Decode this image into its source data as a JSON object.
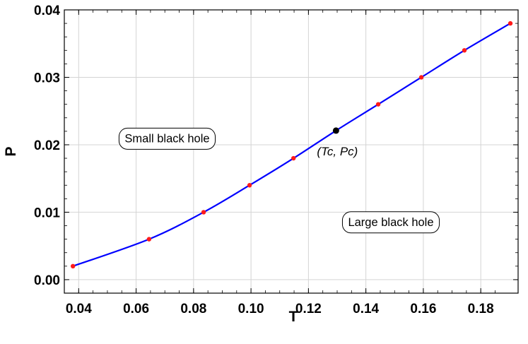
{
  "chart_data": {
    "type": "line",
    "xlabel": "T",
    "ylabel": "P",
    "xlim": [
      0.035,
      0.193
    ],
    "ylim": [
      -0.002,
      0.04
    ],
    "x_ticks": [
      0.04,
      0.06,
      0.08,
      0.1,
      0.12,
      0.14,
      0.16,
      0.18
    ],
    "x_tick_labels": [
      "0.04",
      "0.06",
      "0.08",
      "0.10",
      "0.12",
      "0.14",
      "0.16",
      "0.18"
    ],
    "y_ticks": [
      0.0,
      0.01,
      0.02,
      0.03,
      0.04
    ],
    "y_tick_labels": [
      "0.00",
      "0.01",
      "0.02",
      "0.03",
      "0.04"
    ],
    "grid": true,
    "line_color": "#0000ff",
    "point_color": "#ff1a1a",
    "critical_color": "#000000",
    "series": [
      {
        "x": [
          0.038,
          0.0645,
          0.0835,
          0.0995,
          0.1148,
          0.1296,
          0.1443,
          0.1593,
          0.1743,
          0.1903
        ],
        "y": [
          0.002,
          0.006,
          0.01,
          0.014,
          0.018,
          0.0221,
          0.026,
          0.03,
          0.034,
          0.038
        ]
      }
    ],
    "points": {
      "x": [
        0.038,
        0.0645,
        0.0835,
        0.0995,
        0.1148,
        0.1443,
        0.1593,
        0.1743,
        0.1903
      ],
      "y": [
        0.002,
        0.006,
        0.01,
        0.014,
        0.018,
        0.026,
        0.03,
        0.034,
        0.038
      ]
    },
    "critical_point": {
      "x": 0.1296,
      "y": 0.0221,
      "label": "(Tc, Pc)"
    },
    "annotations": [
      {
        "text": "Small black hole",
        "x": 0.0708,
        "y": 0.021
      },
      {
        "text": "Large black hole",
        "x": 0.1487,
        "y": 0.0086
      }
    ]
  }
}
